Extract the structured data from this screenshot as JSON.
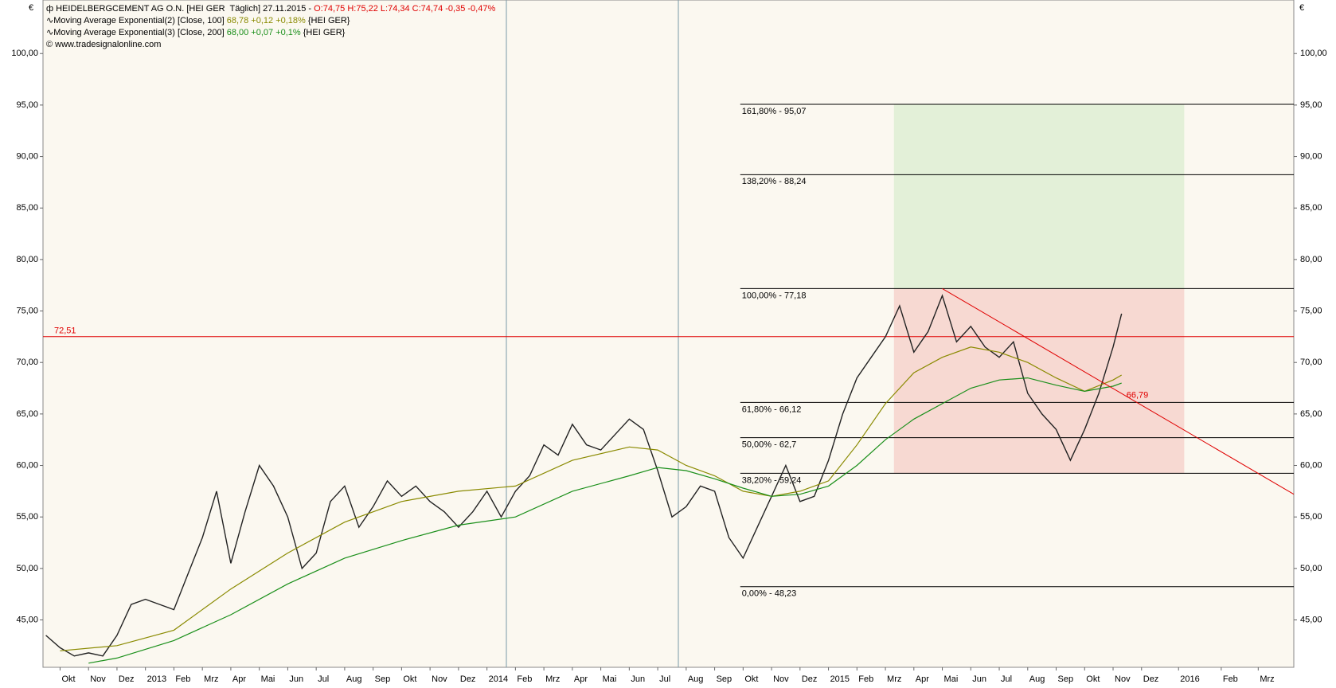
{
  "header": {
    "source": "www.tradesignalonline.com"
  },
  "chart_data": {
    "type": "line",
    "unit": "€",
    "xlim": [
      -0.6,
      43.35
    ],
    "ylim": [
      40.4,
      105.2
    ],
    "xticks": [
      {
        "value": 0,
        "label": "Okt"
      },
      {
        "value": 1,
        "label": "Nov"
      },
      {
        "value": 2,
        "label": "Dez"
      },
      {
        "value": 3,
        "label": "2013"
      },
      {
        "value": 4,
        "label": "Feb"
      },
      {
        "value": 5,
        "label": "Mrz"
      },
      {
        "value": 6,
        "label": "Apr"
      },
      {
        "value": 7,
        "label": "Mai"
      },
      {
        "value": 8,
        "label": "Jun"
      },
      {
        "value": 9,
        "label": "Jul"
      },
      {
        "value": 10,
        "label": "Aug"
      },
      {
        "value": 11,
        "label": "Sep"
      },
      {
        "value": 12,
        "label": "Okt"
      },
      {
        "value": 13,
        "label": "Nov"
      },
      {
        "value": 14,
        "label": "Dez"
      },
      {
        "value": 15,
        "label": "2014"
      },
      {
        "value": 16,
        "label": "Feb"
      },
      {
        "value": 17,
        "label": "Mrz"
      },
      {
        "value": 18,
        "label": "Apr"
      },
      {
        "value": 19,
        "label": "Mai"
      },
      {
        "value": 20,
        "label": "Jun"
      },
      {
        "value": 21,
        "label": "Jul"
      },
      {
        "value": 22,
        "label": "Aug"
      },
      {
        "value": 23,
        "label": "Sep"
      },
      {
        "value": 24,
        "label": "Okt"
      },
      {
        "value": 25,
        "label": "Nov"
      },
      {
        "value": 26,
        "label": "Dez"
      },
      {
        "value": 27,
        "label": "2015"
      },
      {
        "value": 28,
        "label": "Feb"
      },
      {
        "value": 29,
        "label": "Mrz"
      },
      {
        "value": 30,
        "label": "Apr"
      },
      {
        "value": 31,
        "label": "Mai"
      },
      {
        "value": 32,
        "label": "Jun"
      },
      {
        "value": 33,
        "label": "Jul"
      },
      {
        "value": 34,
        "label": "Aug"
      },
      {
        "value": 35,
        "label": "Sep"
      },
      {
        "value": 36,
        "label": "Okt"
      },
      {
        "value": 37,
        "label": "Nov"
      },
      {
        "value": 38,
        "label": "Dez"
      },
      {
        "value": 39.3,
        "label": "2016"
      },
      {
        "value": 40.8,
        "label": "Feb"
      },
      {
        "value": 42.1,
        "label": "Mrz"
      }
    ],
    "yticks": [
      {
        "value": 45,
        "label": "45,00"
      },
      {
        "value": 50,
        "label": "50,00"
      },
      {
        "value": 55,
        "label": "55,00"
      },
      {
        "value": 60,
        "label": "60,00"
      },
      {
        "value": 65,
        "label": "65,00"
      },
      {
        "value": 70,
        "label": "70,00"
      },
      {
        "value": 75,
        "label": "75,00"
      },
      {
        "value": 80,
        "label": "80,00"
      },
      {
        "value": 85,
        "label": "85,00"
      },
      {
        "value": 90,
        "label": "90,00"
      },
      {
        "value": 95,
        "label": "95,00"
      },
      {
        "value": 100,
        "label": "100,00"
      }
    ],
    "series": [
      {
        "name": "HEIDELBERGCEMENT AG O.N. [HEI GER  Täglich] 27.11.2015 -",
        "status": "O:74,75 H:75,22 L:74,34 C:74,74 -0,35 -0,47%",
        "color": "#222222",
        "status_color": "#e00000",
        "x": [
          -0.5,
          0,
          0.5,
          1,
          1.5,
          2,
          2.5,
          3,
          3.5,
          4,
          4.5,
          5,
          5.5,
          6,
          6.5,
          7,
          7.5,
          8,
          8.5,
          9,
          9.5,
          10,
          10.5,
          11,
          11.5,
          12,
          12.5,
          13,
          13.5,
          14,
          14.5,
          15,
          15.5,
          16,
          16.5,
          17,
          17.5,
          18,
          18.5,
          19,
          19.5,
          20,
          20.5,
          21,
          21.5,
          22,
          22.5,
          23,
          23.5,
          24,
          24.5,
          25,
          25.5,
          26,
          26.5,
          27,
          27.5,
          28,
          28.5,
          29,
          29.5,
          30,
          30.5,
          31,
          31.5,
          32,
          32.5,
          33,
          33.5,
          34,
          34.5,
          35,
          35.5,
          36,
          36.5,
          37,
          37.3
        ],
        "values": [
          43.5,
          42.3,
          41.5,
          41.8,
          41.5,
          43.5,
          46.5,
          47,
          46.5,
          46,
          49.5,
          53,
          57.5,
          50.5,
          55.5,
          60,
          58,
          55,
          50,
          51.5,
          56.5,
          58,
          54,
          56,
          58.5,
          57,
          58,
          56.5,
          55.5,
          54,
          55.5,
          57.5,
          55,
          57.5,
          59,
          62,
          61,
          64,
          62,
          61.5,
          63,
          64.5,
          63.5,
          59.5,
          55,
          56,
          58,
          57.5,
          53,
          51,
          54,
          57,
          60,
          56.5,
          57,
          60.5,
          65,
          68.5,
          70.5,
          72.5,
          75.5,
          71,
          73,
          76.5,
          72,
          73.5,
          71.5,
          70.5,
          72,
          67,
          65,
          63.5,
          60.5,
          63.5,
          67,
          71.5,
          74.74
        ]
      },
      {
        "name": "Moving Average Exponential(2) [Close, 100]",
        "status": "68,78 +0,12 +0,18%",
        "suffix": "{HEI GER}",
        "color": "#8a8a00",
        "status_color": "#8a8a00",
        "x": [
          0,
          2,
          4,
          6,
          8,
          10,
          12,
          14,
          16,
          18,
          20,
          21,
          22,
          23,
          24,
          25,
          26,
          27,
          28,
          29,
          30,
          31,
          32,
          33,
          34,
          35,
          36,
          37,
          37.3
        ],
        "values": [
          42,
          42.5,
          44,
          48,
          51.5,
          54.5,
          56.5,
          57.5,
          58,
          60.5,
          61.8,
          61.5,
          60,
          59,
          57.5,
          57,
          57.5,
          58.5,
          62,
          66,
          69,
          70.5,
          71.5,
          71,
          70,
          68.5,
          67.2,
          68.3,
          68.78
        ]
      },
      {
        "name": "Moving Average Exponential(3) [Close, 200]",
        "status": "68,00 +0,07 +0,1%",
        "suffix": "{HEI GER}",
        "color": "#1a8f1a",
        "status_color": "#1a8f1a",
        "x": [
          1,
          2,
          4,
          6,
          8,
          10,
          12,
          14,
          16,
          18,
          20,
          21,
          22,
          23,
          24,
          25,
          26,
          27,
          28,
          29,
          30,
          31,
          32,
          33,
          34,
          35,
          36,
          37,
          37.3
        ],
        "values": [
          40.8,
          41.3,
          43,
          45.5,
          48.5,
          51,
          52.7,
          54.2,
          55,
          57.5,
          59,
          59.8,
          59.5,
          58.7,
          57.8,
          57,
          57.2,
          58,
          60,
          62.5,
          64.5,
          66,
          67.5,
          68.3,
          68.5,
          67.8,
          67.2,
          67.7,
          68
        ]
      }
    ],
    "fib_levels": [
      {
        "value": 95.07,
        "label": "161,80% - 95,07"
      },
      {
        "value": 88.24,
        "label": "138,20% - 88,24"
      },
      {
        "value": 77.18,
        "label": "100,00% - 77,18"
      },
      {
        "value": 66.12,
        "label": "61,80% - 66,12"
      },
      {
        "value": 62.7,
        "label": "50,00% - 62,7"
      },
      {
        "value": 59.24,
        "label": "38,20% - 59,24"
      },
      {
        "value": 48.23,
        "label": "0,00% - 48,23"
      }
    ],
    "fib_start_x": 23.9,
    "fib_zone_x": [
      29.3,
      39.5
    ],
    "hline": {
      "value": 72.51,
      "label": "72,51",
      "color": "#e00000"
    },
    "trendline": {
      "x": [
        31,
        43.35
      ],
      "values": [
        77.18,
        57.2
      ],
      "color": "#e00000"
    },
    "trend_value": {
      "value": 66.79,
      "label": "66,79"
    }
  }
}
